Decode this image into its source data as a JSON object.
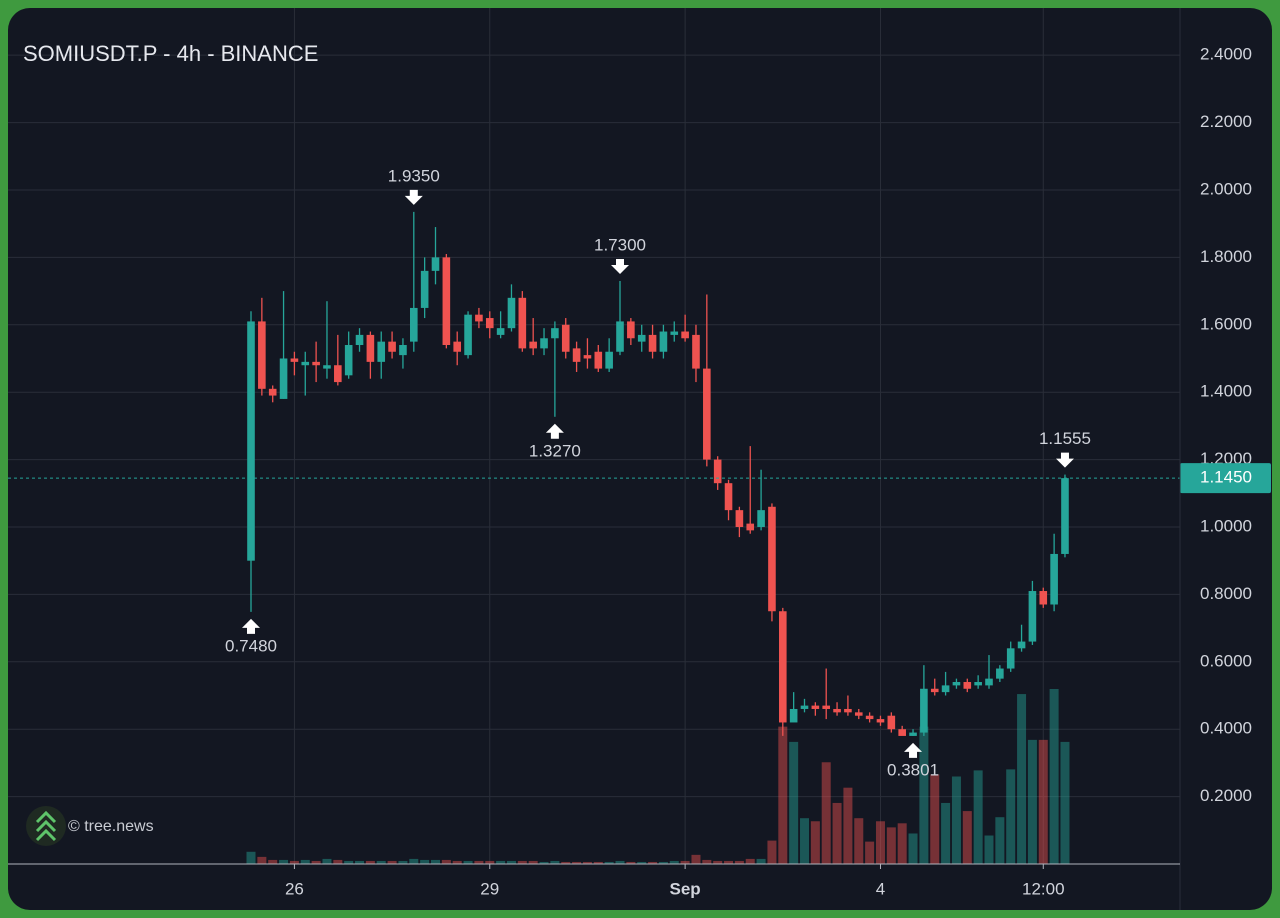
{
  "chart_data": {
    "type": "candlestick",
    "title": "SOMIUSDT.P - 4h - BINANCE",
    "watermark": "© tree.news",
    "categories": [
      null,
      null,
      null,
      null,
      "26",
      null,
      null,
      null,
      null,
      null,
      null,
      null,
      null,
      null,
      null,
      null,
      null,
      null,
      null,
      null,
      null,
      null,
      "29",
      null,
      null,
      null,
      null,
      null,
      null,
      null,
      null,
      null,
      null,
      null,
      null,
      null,
      null,
      null,
      null,
      null,
      "Sep",
      null,
      null,
      null,
      null,
      null,
      null,
      null,
      null,
      null,
      null,
      null,
      null,
      null,
      null,
      null,
      null,
      null,
      "4",
      null,
      null,
      null,
      null,
      null,
      null,
      null,
      null,
      null,
      null,
      null,
      null,
      null,
      null,
      "12:00",
      null,
      null
    ],
    "open": [
      0.9,
      1.61,
      1.41,
      1.38,
      1.5,
      1.48,
      1.49,
      1.47,
      1.48,
      1.45,
      1.54,
      1.57,
      1.49,
      1.55,
      1.51,
      1.55,
      1.65,
      1.76,
      1.8,
      1.55,
      1.51,
      1.63,
      1.62,
      1.57,
      1.59,
      1.68,
      1.55,
      1.53,
      1.56,
      1.6,
      1.53,
      1.51,
      1.52,
      1.47,
      1.52,
      1.61,
      1.55,
      1.57,
      1.52,
      1.57,
      1.58,
      1.57,
      1.47,
      1.2,
      1.13,
      1.05,
      1.01,
      1.0,
      1.06,
      0.75,
      0.42,
      0.46,
      0.47,
      0.47,
      0.46,
      0.46,
      0.45,
      0.44,
      0.43,
      0.44,
      0.4,
      0.38,
      0.39,
      0.52,
      0.51,
      0.53,
      0.54,
      0.53,
      0.53,
      0.55,
      0.58,
      0.64,
      0.66,
      0.81,
      0.77,
      0.92
    ],
    "high": [
      1.64,
      1.68,
      1.42,
      1.7,
      1.52,
      1.52,
      1.55,
      1.67,
      1.57,
      1.58,
      1.59,
      1.58,
      1.58,
      1.58,
      1.56,
      1.935,
      1.8,
      1.89,
      1.81,
      1.58,
      1.64,
      1.65,
      1.64,
      1.64,
      1.72,
      1.7,
      1.62,
      1.59,
      1.61,
      1.62,
      1.55,
      1.56,
      1.54,
      1.56,
      1.73,
      1.62,
      1.6,
      1.6,
      1.6,
      1.61,
      1.63,
      1.6,
      1.69,
      1.21,
      1.14,
      1.06,
      1.24,
      1.17,
      1.07,
      0.76,
      0.51,
      0.49,
      0.48,
      0.58,
      0.48,
      0.5,
      0.46,
      0.45,
      0.44,
      0.45,
      0.41,
      0.4,
      0.59,
      0.55,
      0.57,
      0.55,
      0.55,
      0.56,
      0.62,
      0.59,
      0.66,
      0.71,
      0.84,
      0.82,
      0.98,
      1.1555
    ],
    "low": [
      0.748,
      1.39,
      1.37,
      1.38,
      1.45,
      1.39,
      1.43,
      1.44,
      1.42,
      1.44,
      1.52,
      1.44,
      1.44,
      1.5,
      1.47,
      1.52,
      1.62,
      1.72,
      1.53,
      1.48,
      1.5,
      1.59,
      1.56,
      1.56,
      1.58,
      1.52,
      1.51,
      1.51,
      1.327,
      1.5,
      1.46,
      1.47,
      1.46,
      1.46,
      1.51,
      1.54,
      1.52,
      1.5,
      1.5,
      1.55,
      1.55,
      1.43,
      1.18,
      1.11,
      1.02,
      0.97,
      0.98,
      0.99,
      0.72,
      0.38,
      0.43,
      0.45,
      0.44,
      0.43,
      0.44,
      0.44,
      0.43,
      0.42,
      0.41,
      0.39,
      0.385,
      0.3801,
      0.38,
      0.5,
      0.5,
      0.52,
      0.51,
      0.52,
      0.52,
      0.54,
      0.57,
      0.63,
      0.65,
      0.76,
      0.75,
      0.91
    ],
    "close": [
      1.61,
      1.41,
      1.39,
      1.5,
      1.49,
      1.49,
      1.48,
      1.48,
      1.43,
      1.54,
      1.57,
      1.49,
      1.55,
      1.52,
      1.54,
      1.65,
      1.76,
      1.8,
      1.54,
      1.52,
      1.63,
      1.61,
      1.59,
      1.59,
      1.68,
      1.53,
      1.53,
      1.56,
      1.59,
      1.52,
      1.49,
      1.5,
      1.47,
      1.52,
      1.61,
      1.56,
      1.57,
      1.52,
      1.58,
      1.58,
      1.56,
      1.47,
      1.2,
      1.13,
      1.05,
      1.0,
      0.99,
      1.05,
      0.75,
      0.42,
      0.46,
      0.47,
      0.46,
      0.46,
      0.45,
      0.45,
      0.44,
      0.43,
      0.42,
      0.4,
      0.38,
      0.39,
      0.52,
      0.51,
      0.53,
      0.54,
      0.52,
      0.54,
      0.55,
      0.58,
      0.64,
      0.66,
      0.81,
      0.77,
      0.92,
      1.145
    ],
    "volume": [
      12,
      7,
      4,
      4,
      3,
      4,
      3,
      5,
      4,
      3,
      3,
      3,
      3,
      3,
      3,
      5,
      4,
      4,
      4,
      3,
      3,
      3,
      3,
      3,
      3,
      3,
      3,
      2,
      3,
      2,
      2,
      2,
      2,
      2,
      3,
      2,
      2,
      2,
      2,
      3,
      3,
      9,
      4,
      3,
      3,
      3,
      5,
      5,
      23,
      135,
      120,
      45,
      42,
      100,
      60,
      75,
      45,
      22,
      42,
      36,
      40,
      30,
      135,
      88,
      60,
      86,
      52,
      92,
      28,
      46,
      93,
      167,
      122,
      122,
      172,
      120
    ],
    "up_color": "#26a69a",
    "down_color": "#ef5350",
    "ylim": [
      0,
      2.54
    ],
    "yticks": [
      {
        "value": 0.2,
        "label": "0.2000"
      },
      {
        "value": 0.4,
        "label": "0.4000"
      },
      {
        "value": 0.6,
        "label": "0.6000"
      },
      {
        "value": 0.8,
        "label": "0.8000"
      },
      {
        "value": 1.0,
        "label": "1.0000"
      },
      {
        "value": 1.2,
        "label": "1.2000"
      },
      {
        "value": 1.4,
        "label": "1.4000"
      },
      {
        "value": 1.6,
        "label": "1.6000"
      },
      {
        "value": 1.8,
        "label": "1.8000"
      },
      {
        "value": 2.0,
        "label": "2.0000"
      },
      {
        "value": 2.2,
        "label": "2.2000"
      },
      {
        "value": 2.4,
        "label": "2.4000"
      }
    ],
    "last_price": {
      "value": 1.145,
      "label": "1.1450"
    },
    "annotations": [
      {
        "value": 1.935,
        "label": "1.9350"
      },
      {
        "value": 1.73,
        "label": "1.7300"
      },
      {
        "value": 1.327,
        "label": "1.3270"
      },
      {
        "value": 0.748,
        "label": "0.7480"
      },
      {
        "value": 0.3801,
        "label": "0.3801"
      },
      {
        "value": 1.1555,
        "label": "1.1555"
      }
    ],
    "grid": true
  }
}
